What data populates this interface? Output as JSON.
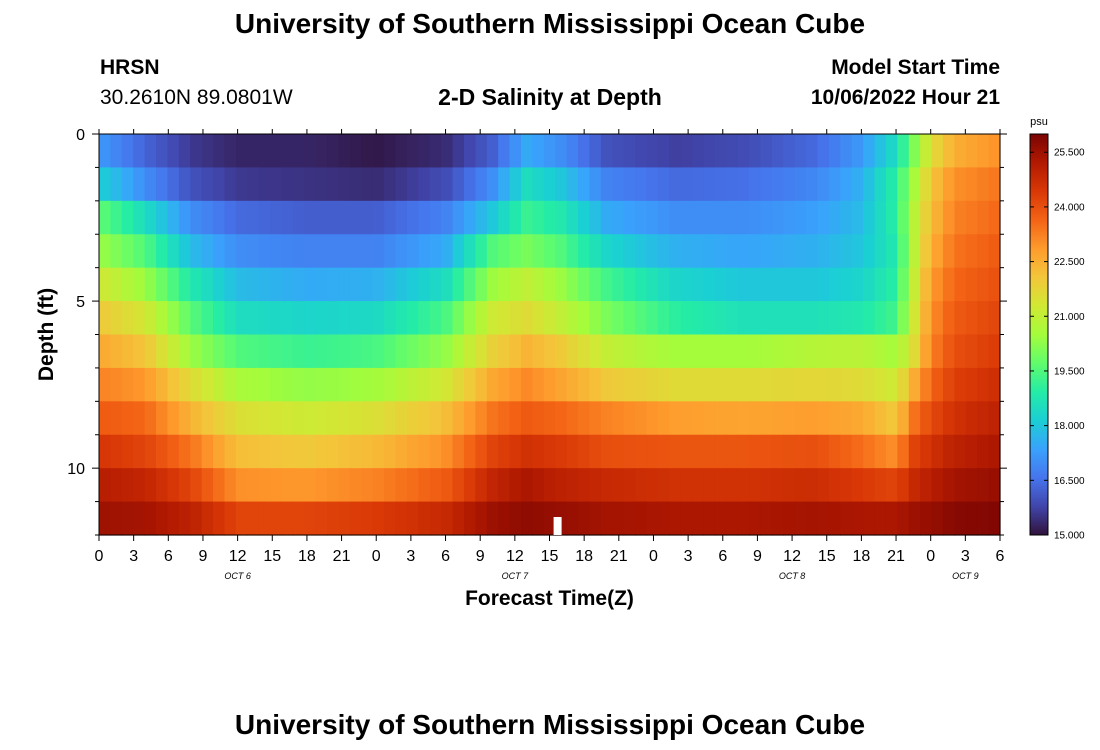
{
  "header": {
    "title": "University of Southern Mississippi Ocean Cube",
    "station": "HRSN",
    "coordinates": "30.2610N  89.0801W",
    "plot_title": "2-D Salinity at Depth",
    "model_start_label": "Model Start Time",
    "model_start_value": "10/06/2022 Hour 21"
  },
  "footer": {
    "title": "University of Southern Mississippi Ocean Cube"
  },
  "chart_data": {
    "type": "heatmap",
    "title": "2-D Salinity at Depth",
    "xlabel": "Forecast Time(Z)",
    "ylabel": "Depth (ft)",
    "x_hours_range": [
      0,
      78
    ],
    "x_tick_labels": [
      "0",
      "3",
      "6",
      "9",
      "12",
      "15",
      "18",
      "21",
      "0",
      "3",
      "6",
      "9",
      "12",
      "15",
      "18",
      "21",
      "0",
      "3",
      "6",
      "9",
      "12",
      "15",
      "18",
      "21",
      "0",
      "3",
      "6"
    ],
    "date_labels": [
      {
        "label": "OCT 6",
        "hour": 12
      },
      {
        "label": "OCT 7",
        "hour": 36
      },
      {
        "label": "OCT 8",
        "hour": 60
      },
      {
        "label": "OCT 9",
        "hour": 75
      }
    ],
    "y_range": [
      0,
      12
    ],
    "y_ticks": [
      0,
      5,
      10
    ],
    "depth_layers": 12,
    "time_columns": 79,
    "now_marker_hour": 39.7,
    "colorbar": {
      "unit": "psu",
      "min": 15.0,
      "max": 26.0,
      "ticks": [
        "15.000",
        "16.500",
        "18.000",
        "19.500",
        "21.000",
        "22.500",
        "24.000",
        "25.500"
      ],
      "colors": [
        "#30123b",
        "#4145ab",
        "#4675ed",
        "#39a2fc",
        "#1bcfd4",
        "#24eca6",
        "#61fc6c",
        "#a4fc3b",
        "#d1e834",
        "#f3c63a",
        "#fe9b2d",
        "#f36315",
        "#d93806",
        "#b11901",
        "#7a0403"
      ]
    },
    "profiles": {
      "key_hours": [
        0,
        4,
        8,
        12,
        18,
        24,
        30,
        34,
        37,
        40,
        44,
        50,
        56,
        62,
        66,
        69,
        70.5,
        72,
        74,
        78
      ],
      "layers": [
        [
          17.2,
          16.3,
          15.6,
          15.3,
          15.3,
          15.1,
          15.4,
          16.2,
          17.5,
          17.0,
          16.0,
          15.7,
          15.9,
          16.4,
          17.2,
          18.5,
          20.0,
          21.5,
          22.5,
          23.0
        ],
        [
          18.2,
          17.0,
          16.0,
          15.6,
          15.5,
          15.4,
          15.9,
          17.0,
          18.5,
          18.0,
          16.8,
          16.4,
          16.5,
          16.9,
          17.6,
          19.0,
          20.5,
          22.0,
          23.0,
          23.4
        ],
        [
          19.7,
          18.5,
          17.0,
          16.4,
          16.2,
          16.2,
          16.8,
          18.0,
          19.2,
          18.8,
          17.5,
          17.0,
          17.0,
          17.3,
          17.8,
          19.0,
          20.8,
          22.2,
          23.2,
          23.6
        ],
        [
          20.4,
          19.5,
          17.8,
          17.0,
          16.8,
          16.8,
          17.5,
          19.5,
          20.0,
          19.5,
          18.3,
          17.6,
          17.4,
          17.6,
          18.0,
          18.8,
          20.8,
          22.5,
          23.4,
          23.8
        ],
        [
          21.3,
          20.4,
          18.8,
          17.8,
          17.5,
          17.6,
          18.5,
          20.4,
          21.0,
          20.4,
          19.3,
          18.3,
          18.0,
          18.0,
          18.3,
          19.0,
          21.0,
          22.8,
          23.6,
          24.0
        ],
        [
          22.0,
          21.3,
          19.6,
          18.5,
          18.3,
          18.4,
          19.4,
          21.2,
          21.6,
          21.0,
          20.0,
          19.0,
          18.6,
          18.6,
          18.8,
          19.3,
          21.2,
          23.0,
          23.8,
          24.2
        ],
        [
          22.6,
          22.1,
          20.4,
          19.5,
          19.2,
          19.4,
          20.3,
          21.8,
          22.4,
          22.0,
          21.0,
          20.5,
          20.5,
          20.8,
          20.9,
          20.5,
          21.5,
          23.2,
          24.0,
          24.4
        ],
        [
          23.2,
          22.9,
          21.6,
          20.6,
          20.3,
          20.5,
          21.3,
          22.6,
          23.1,
          22.7,
          22.0,
          21.6,
          21.6,
          21.7,
          21.6,
          21.2,
          22.5,
          23.6,
          24.3,
          24.7
        ],
        [
          23.8,
          23.6,
          22.4,
          21.5,
          21.2,
          21.5,
          22.2,
          23.4,
          23.8,
          23.6,
          23.2,
          22.8,
          22.7,
          22.8,
          22.6,
          22.0,
          23.4,
          24.1,
          24.6,
          25.0
        ],
        [
          24.5,
          24.2,
          23.4,
          22.2,
          22.0,
          22.3,
          23.0,
          24.2,
          24.6,
          24.4,
          24.0,
          23.9,
          23.9,
          24.0,
          23.5,
          23.0,
          24.2,
          24.6,
          25.0,
          25.3
        ],
        [
          25.1,
          24.9,
          24.2,
          23.0,
          22.9,
          23.2,
          23.8,
          24.9,
          25.3,
          25.0,
          24.8,
          24.6,
          24.6,
          24.7,
          24.4,
          24.2,
          24.8,
          25.1,
          25.4,
          25.6
        ],
        [
          25.5,
          25.4,
          25.0,
          24.2,
          24.2,
          24.4,
          24.8,
          25.5,
          25.7,
          25.6,
          25.4,
          25.3,
          25.3,
          25.4,
          25.3,
          25.3,
          25.5,
          25.6,
          25.8,
          25.9
        ]
      ]
    }
  }
}
